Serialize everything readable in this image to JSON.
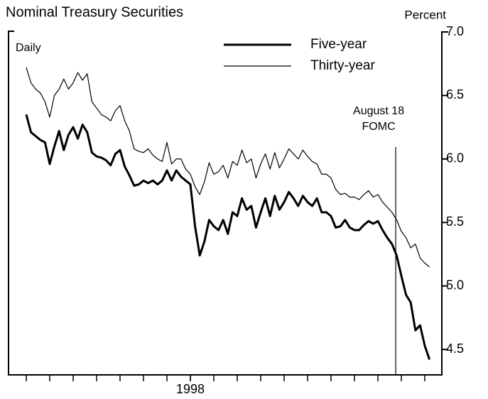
{
  "chart_data": {
    "type": "line",
    "title": "Nominal Treasury Securities",
    "y_axis_label": "Percent",
    "frequency_label": "Daily",
    "categories": [
      null,
      null,
      null,
      null,
      null,
      null,
      null,
      null,
      null,
      null,
      null,
      null,
      null,
      null,
      null,
      null,
      null,
      null,
      null,
      null,
      null,
      null,
      null,
      null,
      null,
      null,
      null,
      null,
      null,
      null,
      null,
      null,
      null,
      null,
      null,
      "1998",
      null,
      null,
      null,
      null,
      null,
      null,
      null,
      null,
      null,
      null,
      null,
      null,
      null,
      null,
      null,
      null,
      null,
      null,
      null,
      null,
      null,
      null,
      null,
      null,
      null,
      null,
      null,
      null,
      null,
      null,
      null,
      null,
      null,
      null,
      null,
      null,
      null,
      null,
      null,
      null,
      null,
      null,
      null,
      null,
      null,
      null,
      null,
      null,
      null,
      null,
      null
    ],
    "series": [
      {
        "name": "Five-year",
        "color": "#000000",
        "values": [
          6.35,
          6.21,
          6.18,
          6.15,
          6.13,
          5.96,
          6.1,
          6.22,
          6.07,
          6.19,
          6.25,
          6.16,
          6.27,
          6.21,
          6.05,
          6.02,
          6.01,
          5.99,
          5.95,
          6.04,
          6.07,
          5.94,
          5.87,
          5.79,
          5.8,
          5.83,
          5.81,
          5.83,
          5.8,
          5.83,
          5.91,
          5.83,
          5.91,
          5.86,
          5.83,
          5.8,
          5.47,
          5.24,
          5.35,
          5.52,
          5.47,
          5.44,
          5.52,
          5.41,
          5.58,
          5.55,
          5.69,
          5.6,
          5.63,
          5.46,
          5.58,
          5.69,
          5.55,
          5.71,
          5.6,
          5.66,
          5.74,
          5.69,
          5.63,
          5.71,
          5.66,
          5.63,
          5.69,
          5.58,
          5.58,
          5.55,
          5.46,
          5.47,
          5.52,
          5.46,
          5.44,
          5.44,
          5.48,
          5.51,
          5.49,
          5.51,
          5.44,
          5.38,
          5.33,
          5.24,
          5.08,
          4.93,
          4.87,
          4.65,
          4.69,
          4.53,
          4.42
        ]
      },
      {
        "name": "Thirty-year",
        "color": "#000000",
        "values": [
          6.72,
          6.6,
          6.55,
          6.52,
          6.45,
          6.33,
          6.5,
          6.55,
          6.63,
          6.55,
          6.6,
          6.68,
          6.62,
          6.67,
          6.45,
          6.4,
          6.35,
          6.33,
          6.3,
          6.38,
          6.42,
          6.3,
          6.22,
          6.08,
          6.06,
          6.05,
          6.08,
          6.03,
          6.0,
          5.98,
          6.13,
          5.96,
          6.0,
          6.0,
          5.92,
          5.88,
          5.78,
          5.72,
          5.82,
          5.97,
          5.88,
          5.9,
          5.95,
          5.85,
          5.98,
          5.95,
          6.07,
          5.97,
          6.0,
          5.85,
          5.96,
          6.04,
          5.92,
          6.05,
          5.93,
          6.0,
          6.08,
          6.04,
          6.0,
          6.07,
          6.02,
          5.98,
          5.96,
          5.88,
          5.88,
          5.85,
          5.76,
          5.72,
          5.73,
          5.7,
          5.7,
          5.68,
          5.72,
          5.75,
          5.7,
          5.72,
          5.66,
          5.62,
          5.58,
          5.52,
          5.43,
          5.38,
          5.3,
          5.33,
          5.22,
          5.18,
          5.15
        ]
      }
    ],
    "ylim": [
      4.3,
      7.0
    ],
    "yticks": [
      4.5,
      {
        "value": 5,
        "label": "5.0"
      },
      5.5,
      {
        "value": 6,
        "label": "6.0"
      },
      6.5,
      {
        "value": 7,
        "label": "7.0"
      }
    ],
    "annotation": {
      "lines": [
        "August 18",
        "FOMC"
      ],
      "x": 78.8
    },
    "grid": false
  }
}
